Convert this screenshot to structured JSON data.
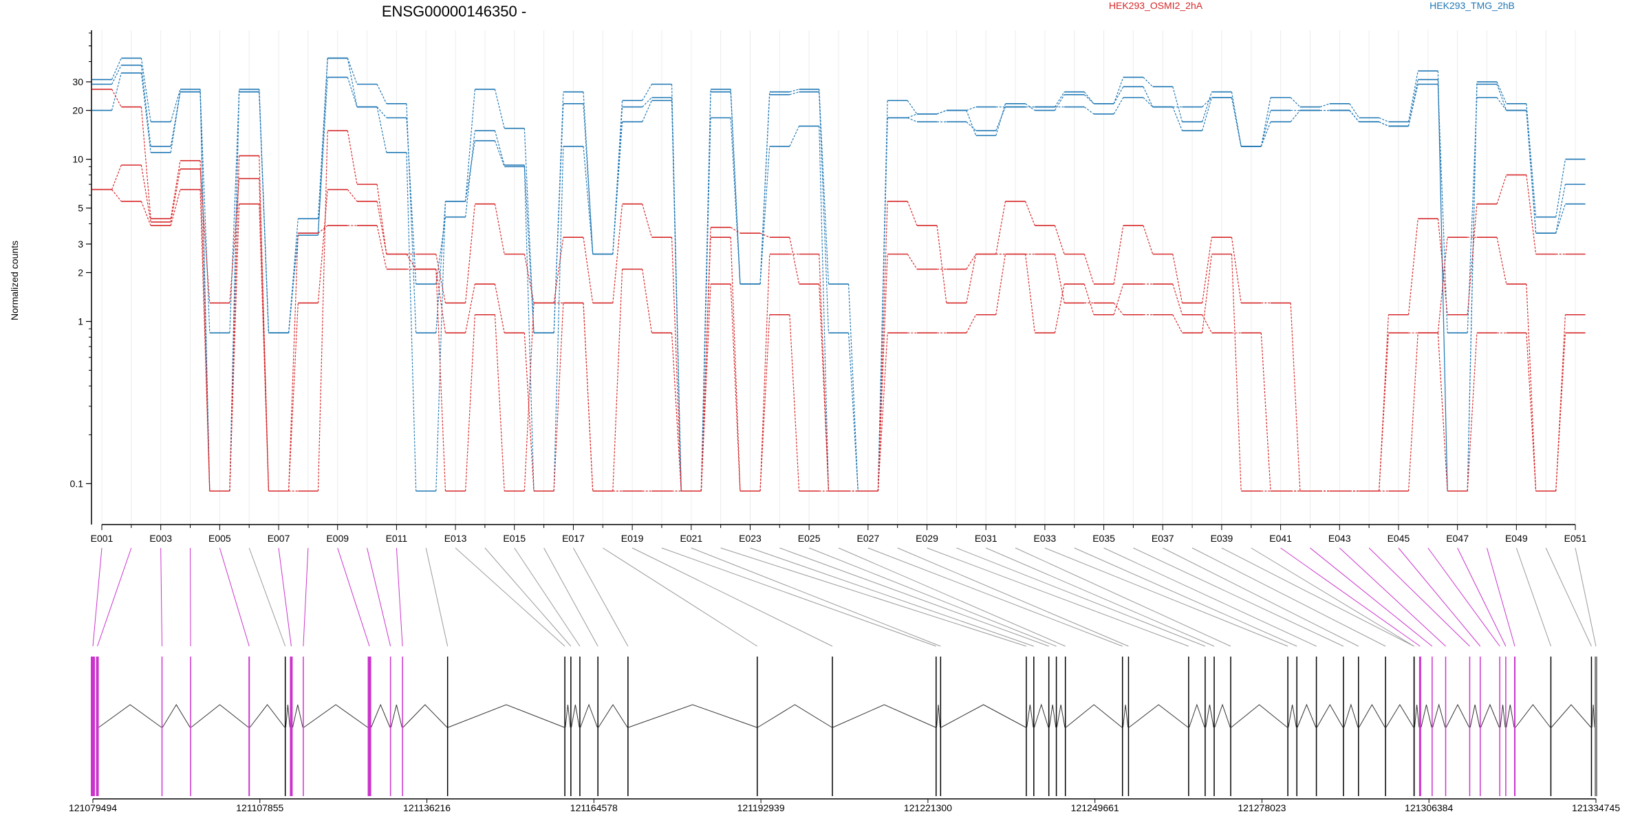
{
  "chart_data": {
    "type": "line",
    "title": "ENSG00000146350 -",
    "ylabel": "Normalized counts",
    "yscale": "log",
    "ylim": [
      0.07,
      60
    ],
    "yticks": [
      0.1,
      1,
      2,
      3,
      5,
      10,
      20,
      30
    ],
    "ytick_labels": [
      "0.1",
      "1",
      "2",
      "3",
      "5",
      "10",
      "20",
      "30"
    ],
    "categories": [
      "E001",
      "E002",
      "E003",
      "E004",
      "E005",
      "E006",
      "E007",
      "E008",
      "E009",
      "E010",
      "E011",
      "E012",
      "E013",
      "E014",
      "E015",
      "E016",
      "E017",
      "E018",
      "E019",
      "E020",
      "E021",
      "E022",
      "E023",
      "E024",
      "E025",
      "E026",
      "E027",
      "E028",
      "E029",
      "E030",
      "E031",
      "E032",
      "E033",
      "E034",
      "E035",
      "E036",
      "E037",
      "E038",
      "E039",
      "E040",
      "E041",
      "E042",
      "E043",
      "E044",
      "E045",
      "E046",
      "E047",
      "E048",
      "E049",
      "E050",
      "E051"
    ],
    "xtick_labels": [
      "E001",
      "E003",
      "E005",
      "E007",
      "E009",
      "E011",
      "E013",
      "E015",
      "E017",
      "E019",
      "E021",
      "E023",
      "E025",
      "E027",
      "E029",
      "E031",
      "E033",
      "E035",
      "E037",
      "E039",
      "E041",
      "E043",
      "E045",
      "E047",
      "E049",
      "E051"
    ],
    "legend": [
      {
        "name": "HEK293_OSMI2_2hA",
        "color": "#d62728"
      },
      {
        "name": "HEK293_TMG_2hB",
        "color": "#1f77b4"
      }
    ],
    "series": [
      {
        "name": "HEK293_TMG_2hB",
        "color": "#1f77b4",
        "values": [
          31,
          42,
          17,
          27,
          0.09,
          27,
          0.85,
          4.3,
          42,
          29,
          22,
          0.85,
          5.5,
          27,
          15.5,
          0.85,
          26,
          2.6,
          23,
          29,
          0.09,
          27,
          1.7,
          26,
          27,
          1.7,
          0.09,
          18,
          17,
          17,
          15,
          21,
          21,
          26,
          22,
          32,
          28,
          17,
          26,
          12,
          24,
          21,
          22,
          18,
          17,
          35,
          0.09,
          30,
          22,
          4.4,
          10
        ]
      },
      {
        "name": "HEK293_TMG_2hB",
        "color": "#1f77b4",
        "values": [
          29,
          38,
          12,
          26,
          0.85,
          26,
          0.85,
          3.5,
          32,
          21,
          18,
          1.7,
          4.4,
          15,
          9.2,
          0.85,
          22,
          2.6,
          21,
          24,
          0.09,
          26,
          1.7,
          25,
          26,
          0.85,
          0.09,
          18,
          19,
          20,
          14,
          22,
          20,
          25,
          22,
          28,
          21,
          15,
          24,
          12,
          17,
          20,
          20,
          17,
          16,
          31,
          0.09,
          29,
          20,
          3.5,
          7
        ]
      },
      {
        "name": "HEK293_TMG_2hB",
        "color": "#1f77b4",
        "values": [
          20,
          34,
          11,
          26,
          0.09,
          26,
          0.85,
          3.4,
          42,
          21,
          11,
          0.09,
          5.5,
          13,
          9,
          0.09,
          12,
          2.6,
          17,
          23,
          0.09,
          18,
          1.7,
          12,
          16,
          0.09,
          0.09,
          23,
          19,
          20,
          21,
          21,
          21,
          21,
          19,
          24,
          21,
          21,
          24,
          12,
          20,
          20,
          20,
          17,
          16,
          29,
          0.85,
          24,
          20,
          3.5,
          5.3
        ]
      },
      {
        "name": "HEK293_OSMI2_2hA",
        "color": "#d62728",
        "values": [
          27,
          21,
          4.3,
          9.8,
          0.09,
          10.5,
          0.09,
          0.09,
          15,
          7,
          2.6,
          2.6,
          1.3,
          5.3,
          2.6,
          1.3,
          3.3,
          1.3,
          5.3,
          3.3,
          0.09,
          3.8,
          3.5,
          3.3,
          1.7,
          0.09,
          0.09,
          5.5,
          3.9,
          1.3,
          2.6,
          5.5,
          3.9,
          2.6,
          1.7,
          3.9,
          2.6,
          1.3,
          3.3,
          1.3,
          1.3,
          0.09,
          0.09,
          0.09,
          1.1,
          4.3,
          1.1,
          5.3,
          8,
          2.6,
          2.6
        ]
      },
      {
        "name": "HEK293_OSMI2_2hA",
        "color": "#d62728",
        "values": [
          6.5,
          9.2,
          4.1,
          8.7,
          1.3,
          7.6,
          0.09,
          1.3,
          6.5,
          5.5,
          2.6,
          2.1,
          0.85,
          1.7,
          0.85,
          0.09,
          1.3,
          0.09,
          2.1,
          0.85,
          0.09,
          1.7,
          0.09,
          2.6,
          2.6,
          0.09,
          0.09,
          2.6,
          2.1,
          2.1,
          2.6,
          2.6,
          2.6,
          1.3,
          1.3,
          1.1,
          1.1,
          0.85,
          2.6,
          0.09,
          0.09,
          0.09,
          0.09,
          0.09,
          0.85,
          0.85,
          3.3,
          3.3,
          1.7,
          0.09,
          1.1
        ]
      },
      {
        "name": "HEK293_OSMI2_2hA",
        "color": "#d62728",
        "values": [
          6.5,
          5.5,
          3.9,
          6.5,
          0.09,
          5.3,
          0.09,
          3.5,
          3.9,
          3.9,
          2.1,
          2.1,
          0.09,
          1.1,
          0.09,
          1.3,
          1.3,
          0.09,
          0.09,
          0.09,
          0.09,
          3.3,
          0.09,
          1.1,
          0.09,
          0.09,
          0.09,
          0.85,
          0.85,
          0.85,
          1.1,
          2.6,
          0.85,
          1.7,
          1.1,
          1.7,
          1.7,
          1.1,
          0.85,
          0.85,
          0.09,
          0.09,
          0.09,
          0.09,
          0.09,
          0.85,
          0.09,
          0.85,
          0.85,
          0.09,
          0.85
        ]
      }
    ],
    "gene_model": {
      "coordinate_labels": [
        "121079494",
        "121107855",
        "121136216",
        "121164578",
        "121192939",
        "121221300",
        "121249661",
        "121278023",
        "121306384",
        "121334745"
      ],
      "highlighted_exons": [
        "E001",
        "E002",
        "E003",
        "E004",
        "E005",
        "E007",
        "E008",
        "E009",
        "E010",
        "E011",
        "E041",
        "E042",
        "E043",
        "E044",
        "E045",
        "E046",
        "E047",
        "E048"
      ],
      "highlight_color": "#cc33cc"
    }
  }
}
